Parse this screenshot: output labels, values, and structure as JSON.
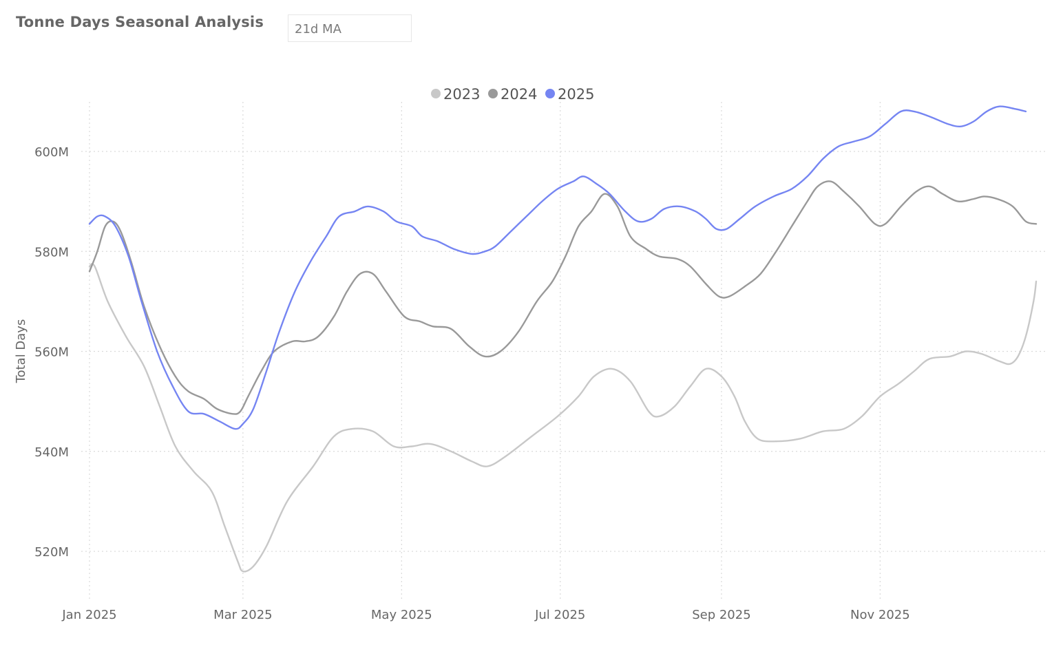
{
  "header": {
    "title": "Tonne Days Seasonal Analysis",
    "ma_selector_value": "21d MA"
  },
  "chart_data": {
    "type": "line",
    "title": "",
    "xlabel": "",
    "ylabel": "Total Days",
    "x_range": [
      "2025-01-01",
      "2025-12-31"
    ],
    "ylim": [
      510,
      610
    ],
    "y_ticks": [
      {
        "value": 520,
        "label": "520M"
      },
      {
        "value": 540,
        "label": "540M"
      },
      {
        "value": 560,
        "label": "560M"
      },
      {
        "value": 580,
        "label": "580M"
      },
      {
        "value": 600,
        "label": "600M"
      }
    ],
    "x_ticks": [
      {
        "date": "2025-01-01",
        "label": "Jan 2025"
      },
      {
        "date": "2025-03-01",
        "label": "Mar 2025"
      },
      {
        "date": "2025-05-01",
        "label": "May 2025"
      },
      {
        "date": "2025-07-01",
        "label": "Jul 2025"
      },
      {
        "date": "2025-09-01",
        "label": "Sep 2025"
      },
      {
        "date": "2025-11-01",
        "label": "Nov 2025"
      }
    ],
    "grid": true,
    "legend_position": "top-center",
    "series": [
      {
        "name": "2023",
        "color": "#c8c8c8",
        "points": [
          [
            "2025-01-01",
            577
          ],
          [
            "2025-01-03",
            577
          ],
          [
            "2025-01-08",
            570
          ],
          [
            "2025-01-15",
            563
          ],
          [
            "2025-01-22",
            557
          ],
          [
            "2025-01-28",
            549
          ],
          [
            "2025-02-03",
            541
          ],
          [
            "2025-02-10",
            536
          ],
          [
            "2025-02-17",
            532
          ],
          [
            "2025-02-22",
            525
          ],
          [
            "2025-02-27",
            518
          ],
          [
            "2025-03-01",
            516
          ],
          [
            "2025-03-05",
            517
          ],
          [
            "2025-03-10",
            521
          ],
          [
            "2025-03-18",
            530
          ],
          [
            "2025-03-28",
            537
          ],
          [
            "2025-04-05",
            543
          ],
          [
            "2025-04-12",
            544.5
          ],
          [
            "2025-04-20",
            544
          ],
          [
            "2025-04-28",
            541
          ],
          [
            "2025-05-05",
            541
          ],
          [
            "2025-05-12",
            541.5
          ],
          [
            "2025-05-20",
            540
          ],
          [
            "2025-05-28",
            538
          ],
          [
            "2025-06-03",
            537
          ],
          [
            "2025-06-10",
            539
          ],
          [
            "2025-06-20",
            543
          ],
          [
            "2025-06-30",
            547
          ],
          [
            "2025-07-08",
            551
          ],
          [
            "2025-07-14",
            555
          ],
          [
            "2025-07-21",
            556.5
          ],
          [
            "2025-07-28",
            554
          ],
          [
            "2025-08-04",
            548
          ],
          [
            "2025-08-08",
            547
          ],
          [
            "2025-08-14",
            549
          ],
          [
            "2025-08-20",
            553
          ],
          [
            "2025-08-26",
            556.5
          ],
          [
            "2025-09-01",
            555
          ],
          [
            "2025-09-06",
            551
          ],
          [
            "2025-09-10",
            546
          ],
          [
            "2025-09-15",
            542.5
          ],
          [
            "2025-09-22",
            542
          ],
          [
            "2025-10-01",
            542.5
          ],
          [
            "2025-10-10",
            544
          ],
          [
            "2025-10-18",
            544.5
          ],
          [
            "2025-10-25",
            547
          ],
          [
            "2025-11-01",
            551
          ],
          [
            "2025-11-08",
            553.5
          ],
          [
            "2025-11-14",
            556
          ],
          [
            "2025-11-20",
            558.5
          ],
          [
            "2025-11-28",
            559
          ],
          [
            "2025-12-04",
            560
          ],
          [
            "2025-12-10",
            559.5
          ],
          [
            "2025-12-17",
            558
          ],
          [
            "2025-12-21",
            557.5
          ],
          [
            "2025-12-24",
            559
          ],
          [
            "2025-12-27",
            563
          ],
          [
            "2025-12-30",
            570
          ],
          [
            "2025-12-31",
            574
          ]
        ]
      },
      {
        "name": "2024",
        "color": "#999999",
        "points": [
          [
            "2025-01-01",
            576
          ],
          [
            "2025-01-04",
            580
          ],
          [
            "2025-01-07",
            585
          ],
          [
            "2025-01-10",
            586
          ],
          [
            "2025-01-13",
            584
          ],
          [
            "2025-01-17",
            578
          ],
          [
            "2025-01-22",
            569
          ],
          [
            "2025-01-28",
            561
          ],
          [
            "2025-02-03",
            555
          ],
          [
            "2025-02-08",
            552
          ],
          [
            "2025-02-14",
            550.5
          ],
          [
            "2025-02-19",
            548.5
          ],
          [
            "2025-02-25",
            547.5
          ],
          [
            "2025-02-28",
            548
          ],
          [
            "2025-03-03",
            551
          ],
          [
            "2025-03-08",
            556
          ],
          [
            "2025-03-13",
            560
          ],
          [
            "2025-03-20",
            562
          ],
          [
            "2025-03-25",
            562
          ],
          [
            "2025-03-30",
            563
          ],
          [
            "2025-04-05",
            567
          ],
          [
            "2025-04-10",
            572
          ],
          [
            "2025-04-15",
            575.5
          ],
          [
            "2025-04-20",
            575.5
          ],
          [
            "2025-04-25",
            572
          ],
          [
            "2025-05-02",
            567
          ],
          [
            "2025-05-08",
            566
          ],
          [
            "2025-05-13",
            565
          ],
          [
            "2025-05-20",
            564.5
          ],
          [
            "2025-05-27",
            561
          ],
          [
            "2025-06-02",
            559
          ],
          [
            "2025-06-08",
            560
          ],
          [
            "2025-06-15",
            564
          ],
          [
            "2025-06-22",
            570
          ],
          [
            "2025-06-28",
            574
          ],
          [
            "2025-07-03",
            579
          ],
          [
            "2025-07-08",
            585
          ],
          [
            "2025-07-13",
            588
          ],
          [
            "2025-07-18",
            591.5
          ],
          [
            "2025-07-23",
            589
          ],
          [
            "2025-07-28",
            583
          ],
          [
            "2025-08-03",
            580.5
          ],
          [
            "2025-08-08",
            579
          ],
          [
            "2025-08-15",
            578.5
          ],
          [
            "2025-08-20",
            577
          ],
          [
            "2025-08-26",
            573.5
          ],
          [
            "2025-08-31",
            571
          ],
          [
            "2025-09-04",
            571
          ],
          [
            "2025-09-10",
            573
          ],
          [
            "2025-09-16",
            575.5
          ],
          [
            "2025-09-22",
            580
          ],
          [
            "2025-09-28",
            585
          ],
          [
            "2025-10-04",
            590
          ],
          [
            "2025-10-08",
            593
          ],
          [
            "2025-10-13",
            594
          ],
          [
            "2025-10-18",
            592
          ],
          [
            "2025-10-24",
            589
          ],
          [
            "2025-10-30",
            585.5
          ],
          [
            "2025-11-03",
            585.5
          ],
          [
            "2025-11-09",
            589
          ],
          [
            "2025-11-15",
            592
          ],
          [
            "2025-11-20",
            593
          ],
          [
            "2025-11-25",
            591.5
          ],
          [
            "2025-12-01",
            590
          ],
          [
            "2025-12-07",
            590.5
          ],
          [
            "2025-12-11",
            591
          ],
          [
            "2025-12-16",
            590.5
          ],
          [
            "2025-12-22",
            589
          ],
          [
            "2025-12-27",
            586
          ],
          [
            "2025-12-31",
            585.5
          ]
        ]
      },
      {
        "name": "2025",
        "color": "#7585f2",
        "points": [
          [
            "2025-01-01",
            585.5
          ],
          [
            "2025-01-04",
            587
          ],
          [
            "2025-01-07",
            587
          ],
          [
            "2025-01-11",
            585
          ],
          [
            "2025-01-16",
            579
          ],
          [
            "2025-01-21",
            570
          ],
          [
            "2025-01-27",
            560
          ],
          [
            "2025-02-02",
            553
          ],
          [
            "2025-02-08",
            548
          ],
          [
            "2025-02-14",
            547.5
          ],
          [
            "2025-02-20",
            546
          ],
          [
            "2025-02-26",
            544.5
          ],
          [
            "2025-03-01",
            545.5
          ],
          [
            "2025-03-05",
            548.5
          ],
          [
            "2025-03-10",
            556
          ],
          [
            "2025-03-15",
            564
          ],
          [
            "2025-03-21",
            572
          ],
          [
            "2025-03-27",
            578
          ],
          [
            "2025-04-02",
            583
          ],
          [
            "2025-04-07",
            587
          ],
          [
            "2025-04-13",
            588
          ],
          [
            "2025-04-18",
            589
          ],
          [
            "2025-04-24",
            588
          ],
          [
            "2025-04-29",
            586
          ],
          [
            "2025-05-05",
            585
          ],
          [
            "2025-05-09",
            583
          ],
          [
            "2025-05-15",
            582
          ],
          [
            "2025-05-21",
            580.5
          ],
          [
            "2025-05-28",
            579.5
          ],
          [
            "2025-06-02",
            580
          ],
          [
            "2025-06-06",
            581
          ],
          [
            "2025-06-12",
            584
          ],
          [
            "2025-06-18",
            587
          ],
          [
            "2025-06-24",
            590
          ],
          [
            "2025-06-30",
            592.5
          ],
          [
            "2025-07-06",
            594
          ],
          [
            "2025-07-10",
            595
          ],
          [
            "2025-07-15",
            593.5
          ],
          [
            "2025-07-20",
            591.5
          ],
          [
            "2025-07-26",
            588
          ],
          [
            "2025-07-31",
            586
          ],
          [
            "2025-08-05",
            586.5
          ],
          [
            "2025-08-10",
            588.5
          ],
          [
            "2025-08-16",
            589
          ],
          [
            "2025-08-22",
            588
          ],
          [
            "2025-08-26",
            586.5
          ],
          [
            "2025-08-30",
            584.5
          ],
          [
            "2025-09-03",
            584.5
          ],
          [
            "2025-09-08",
            586.5
          ],
          [
            "2025-09-14",
            589
          ],
          [
            "2025-09-21",
            591
          ],
          [
            "2025-09-28",
            592.5
          ],
          [
            "2025-10-04",
            595
          ],
          [
            "2025-10-10",
            598.5
          ],
          [
            "2025-10-16",
            601
          ],
          [
            "2025-10-22",
            602
          ],
          [
            "2025-10-28",
            603
          ],
          [
            "2025-11-03",
            605.5
          ],
          [
            "2025-11-09",
            608
          ],
          [
            "2025-11-14",
            608
          ],
          [
            "2025-11-20",
            607
          ],
          [
            "2025-11-27",
            605.5
          ],
          [
            "2025-12-02",
            605
          ],
          [
            "2025-12-07",
            606
          ],
          [
            "2025-12-12",
            608
          ],
          [
            "2025-12-17",
            609
          ],
          [
            "2025-12-23",
            608.5
          ],
          [
            "2025-12-27",
            608
          ]
        ]
      }
    ]
  }
}
